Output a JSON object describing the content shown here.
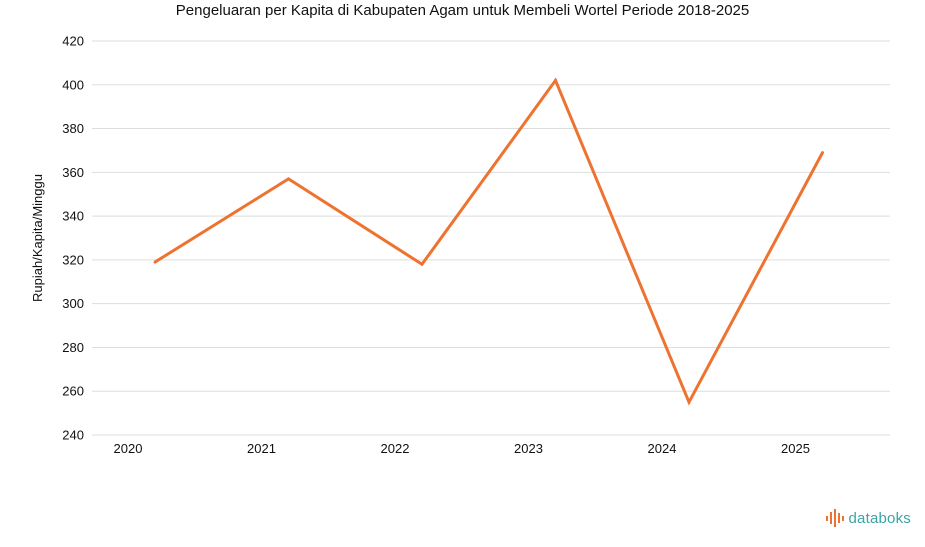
{
  "chart_data": {
    "type": "line",
    "title": "Pengeluaran per Kapita di Kabupaten Agam untuk Membeli Wortel Periode 2018-2025",
    "xlabel": "",
    "ylabel": "Rupiah/Kapita/Minggu",
    "categories": [
      "2020",
      "2021",
      "2022",
      "2023",
      "2024",
      "2025"
    ],
    "series": [
      {
        "values": [
          319,
          357,
          318,
          402,
          255,
          369
        ]
      }
    ],
    "ylim": [
      240,
      420
    ],
    "yticks": [
      240,
      260,
      280,
      300,
      320,
      340,
      360,
      380,
      400,
      420
    ],
    "grid": true,
    "line_color": "#ee7330"
  },
  "branding": {
    "logo_text": "databoks",
    "logo_icon": "databoks-bars-icon"
  }
}
